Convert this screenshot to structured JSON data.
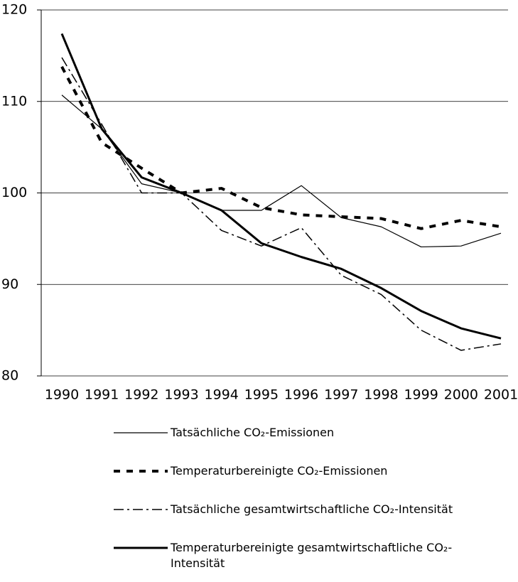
{
  "chart_data": {
    "type": "line",
    "categories": [
      "1990",
      "1991",
      "1992",
      "1993",
      "1994",
      "1995",
      "1996",
      "1997",
      "1998",
      "1999",
      "2000",
      "2001"
    ],
    "ylim": [
      80,
      120
    ],
    "yticks": [
      80,
      90,
      100,
      110,
      120
    ],
    "grid": true,
    "series": [
      {
        "name": "Tatsächliche CO₂-Emissionen",
        "color": "#000000",
        "style": "solid",
        "width": 1.2,
        "values": [
          110.7,
          107.0,
          101.0,
          100.0,
          98.1,
          98.1,
          100.8,
          97.3,
          96.3,
          94.1,
          94.2,
          95.6
        ]
      },
      {
        "name": "Temperaturbereinigte CO₂-Emissionen",
        "color": "#000000",
        "style": "dashed",
        "width": 4,
        "values": [
          113.8,
          105.5,
          102.7,
          100.0,
          100.5,
          98.4,
          97.6,
          97.4,
          97.2,
          96.1,
          97.0,
          96.3
        ]
      },
      {
        "name": "Tatsächliche gesamtwirtschaftliche CO₂-Intensität",
        "color": "#000000",
        "style": "dashdot",
        "width": 1.5,
        "values": [
          114.8,
          107.5,
          100.0,
          100.0,
          95.9,
          94.2,
          96.2,
          91.0,
          88.9,
          85.0,
          82.8,
          83.5
        ]
      },
      {
        "name": "Temperaturbereinigte gesamtwirtschaftliche CO₂-Intensität",
        "color": "#000000",
        "style": "solid",
        "width": 3,
        "values": [
          117.4,
          107.0,
          101.7,
          100.0,
          98.1,
          94.5,
          93.0,
          91.7,
          89.6,
          87.1,
          85.2,
          84.1
        ]
      }
    ]
  }
}
